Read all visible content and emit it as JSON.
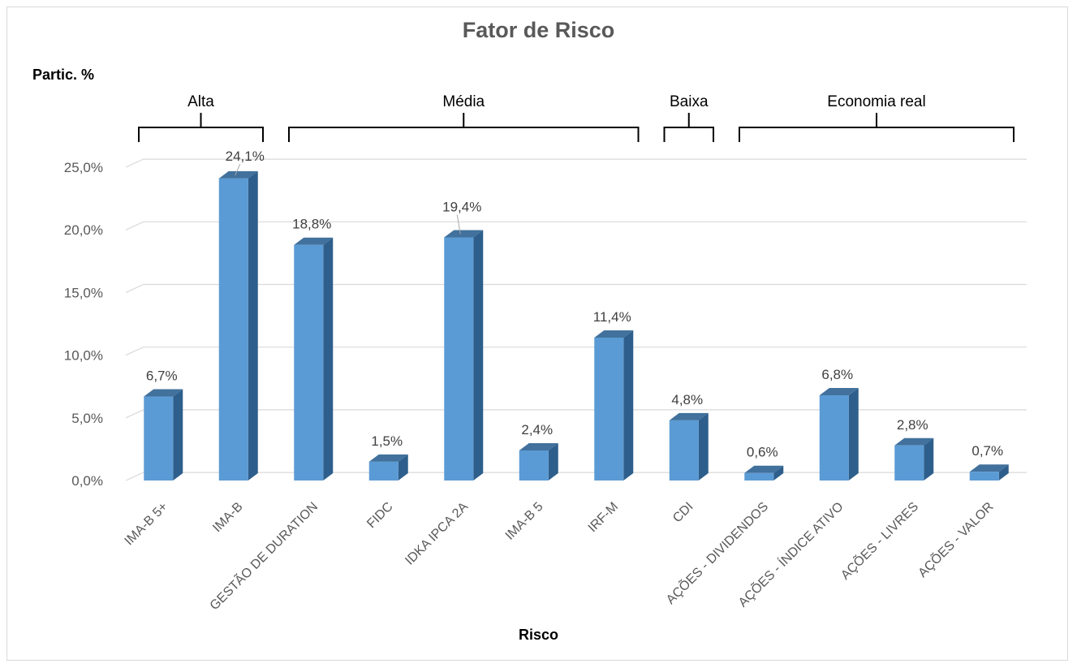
{
  "chart_data": {
    "type": "bar",
    "title": "Fator de Risco",
    "ylabel": "Partic. %",
    "xlabel": "Risco",
    "categories": [
      "IMA-B 5+",
      "IMA-B",
      "GESTÃO DE DURATION",
      "FIDC",
      "IDKA IPCA 2A",
      "IMA-B 5",
      "IRF-M",
      "CDI",
      "AÇÕES - DIVIDENDOS",
      "AÇÕES - ÍNDICE ATIVO",
      "AÇÕES - LIVRES",
      "AÇÕES - VALOR"
    ],
    "values": [
      6.7,
      24.1,
      18.8,
      1.5,
      19.4,
      2.4,
      11.4,
      4.8,
      0.6,
      6.8,
      2.8,
      0.7
    ],
    "value_labels": [
      "6,7%",
      "24,1%",
      "18,8%",
      "1,5%",
      "19,4%",
      "2,4%",
      "11,4%",
      "4,8%",
      "0,6%",
      "6,8%",
      "2,8%",
      "0,7%"
    ],
    "ylim": [
      0,
      25
    ],
    "yticks": [
      0,
      5,
      10,
      15,
      20,
      25
    ],
    "ytick_labels": [
      "0,0%",
      "5,0%",
      "10,0%",
      "15,0%",
      "20,0%",
      "25,0%"
    ],
    "groups": [
      {
        "label": "Alta",
        "start": 0,
        "end": 1
      },
      {
        "label": "Média",
        "start": 2,
        "end": 6
      },
      {
        "label": "Baixa",
        "start": 7,
        "end": 7
      },
      {
        "label": "Economia real",
        "start": 8,
        "end": 11
      }
    ],
    "grid": true,
    "colors": {
      "bar_front": "#5b9bd5",
      "bar_side": "#2e5f8c",
      "bar_top": "#41719c",
      "grid": "#d9d9d9",
      "tick_text": "#595959"
    }
  }
}
